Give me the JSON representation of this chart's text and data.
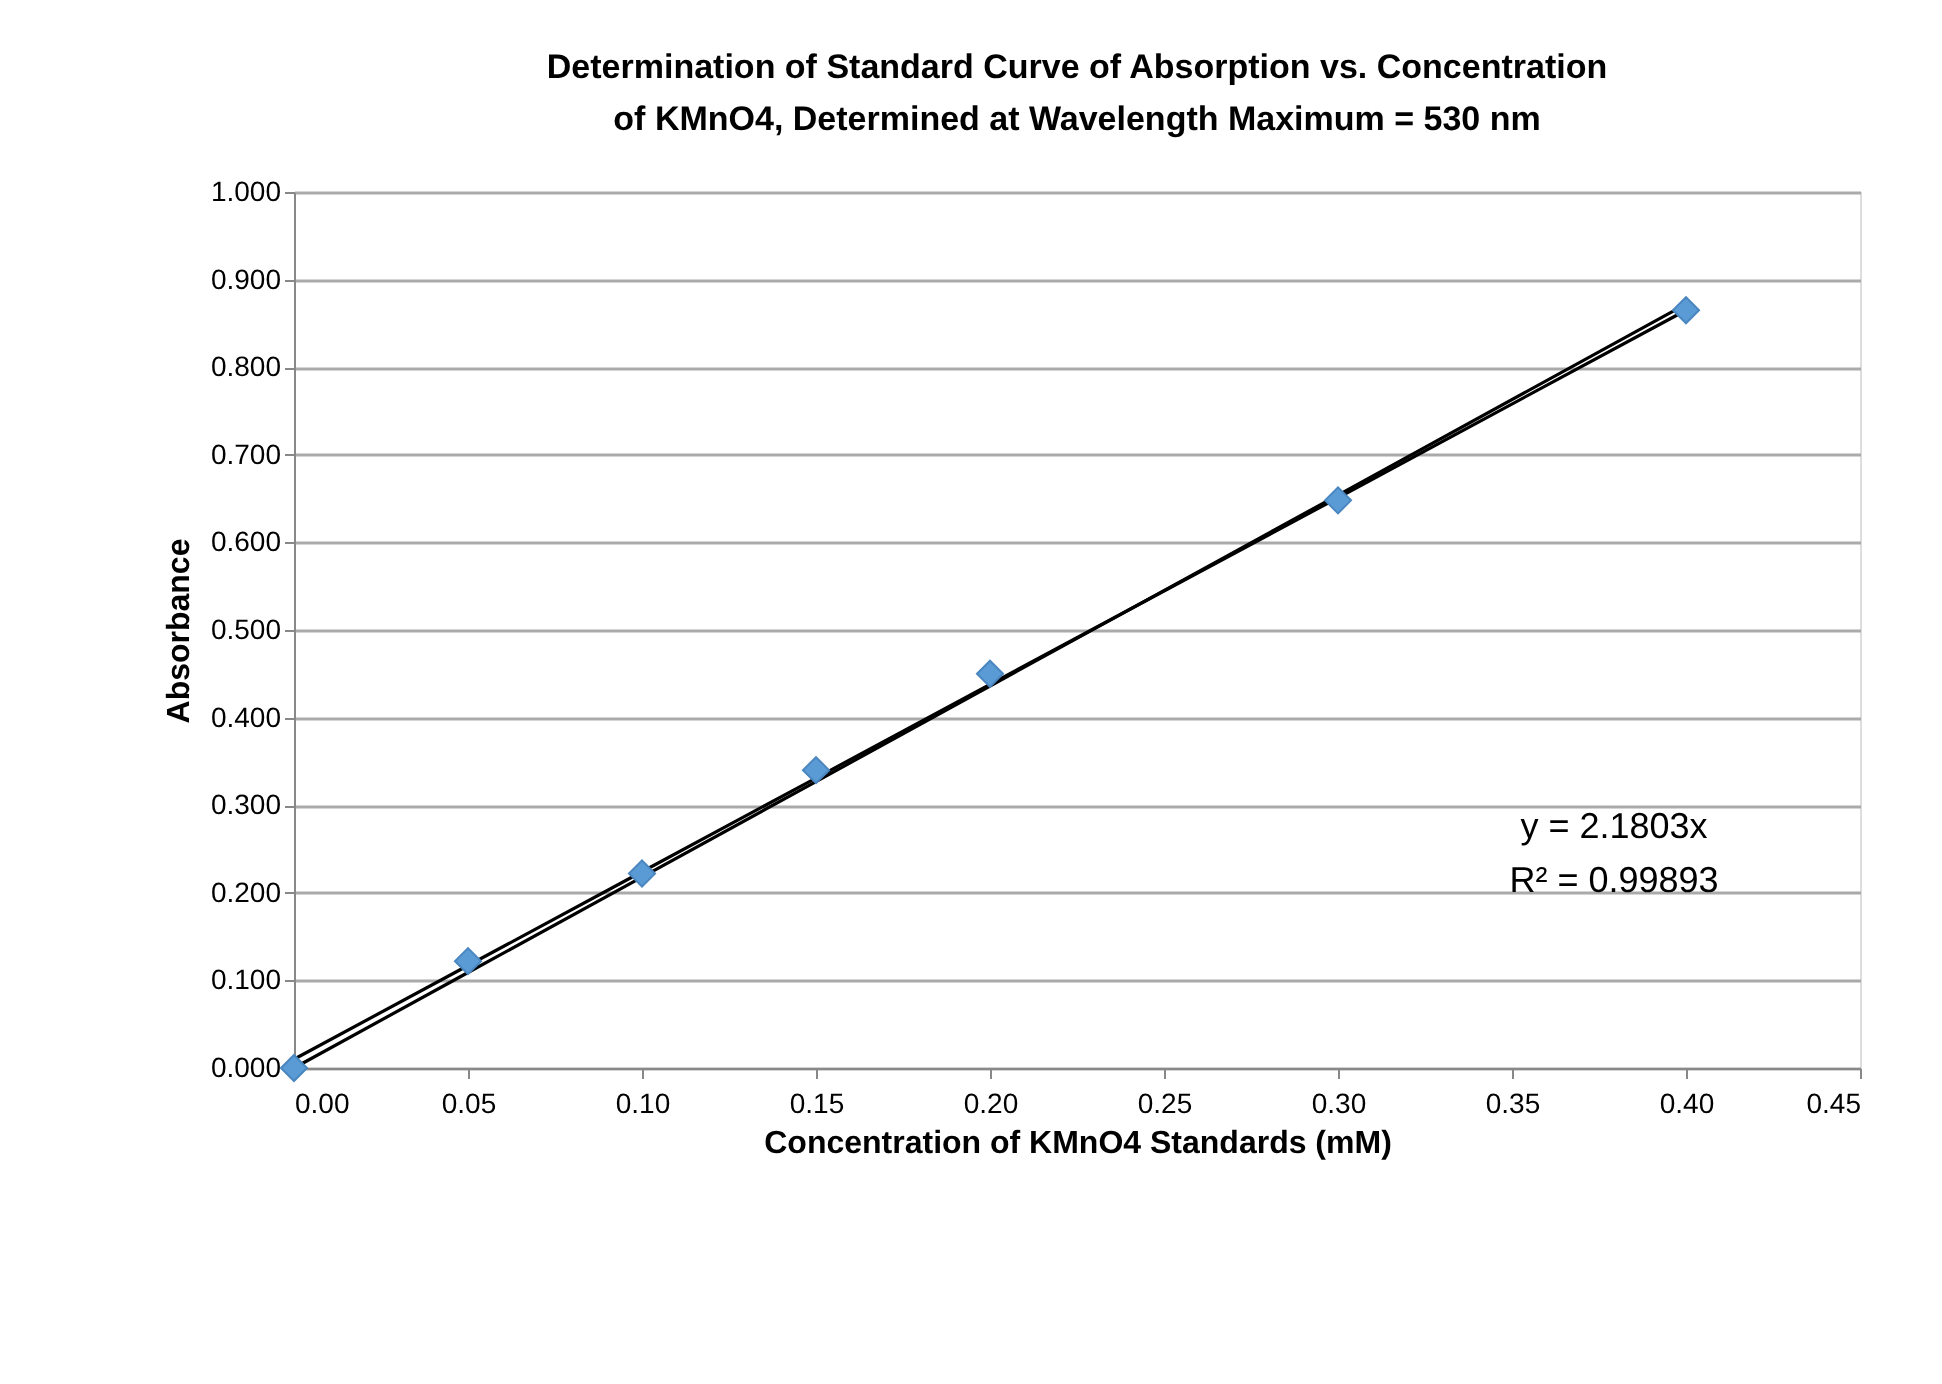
{
  "chart_data": {
    "type": "scatter",
    "title": "Determination of Standard Curve of Absorption vs. Concentration of KMnO4, Determined at Wavelength Maximum = 530 nm",
    "xlabel": "Concentration of KMnO4 Standards (mM)",
    "ylabel": "Absorbance",
    "x": [
      0.0,
      0.05,
      0.1,
      0.15,
      0.2,
      0.3,
      0.4
    ],
    "series": [
      {
        "color": "#5b9bd5",
        "marker": "diamond",
        "values": [
          0.0,
          0.122,
          0.222,
          0.34,
          0.45,
          0.648,
          0.865
        ]
      },
      {
        "type": "line",
        "color": "#000000",
        "line_style": "solid",
        "values": [
          0.0,
          0.109,
          0.218,
          0.327,
          0.436,
          0.654,
          0.872
        ]
      },
      {
        "type": "line",
        "color": "#000000",
        "line_style": "solid",
        "values": [
          0.01,
          0.117,
          0.224,
          0.331,
          0.438,
          0.651,
          0.865
        ]
      }
    ],
    "xlim": [
      0,
      0.45
    ],
    "xticks": [
      {
        "value": 0,
        "label": "0.00"
      },
      {
        "value": 0.05,
        "label": "0.05"
      },
      {
        "value": 0.1,
        "label": "0.10"
      },
      {
        "value": 0.15,
        "label": "0.15"
      },
      {
        "value": 0.2,
        "label": "0.20"
      },
      {
        "value": 0.25,
        "label": "0.25"
      },
      {
        "value": 0.3,
        "label": "0.30"
      },
      {
        "value": 0.35,
        "label": "0.35"
      },
      {
        "value": 0.4,
        "label": "0.40"
      },
      {
        "value": 0.45,
        "label": "0.45"
      }
    ],
    "ylim": [
      0,
      1
    ],
    "yticks": [
      {
        "value": 0,
        "label": "0.000"
      },
      {
        "value": 0.1,
        "label": "0.100"
      },
      {
        "value": 0.2,
        "label": "0.200"
      },
      {
        "value": 0.3,
        "label": "0.300"
      },
      {
        "value": 0.4,
        "label": "0.400"
      },
      {
        "value": 0.5,
        "label": "0.500"
      },
      {
        "value": 0.6,
        "label": "0.600"
      },
      {
        "value": 0.7,
        "label": "0.700"
      },
      {
        "value": 0.8,
        "label": "0.800"
      },
      {
        "value": 0.9,
        "label": "0.900"
      },
      {
        "value": 1,
        "label": "1.000"
      }
    ],
    "grid": "y",
    "annotations": [
      "y = 2.1803x",
      "R² = 0.99893"
    ]
  }
}
